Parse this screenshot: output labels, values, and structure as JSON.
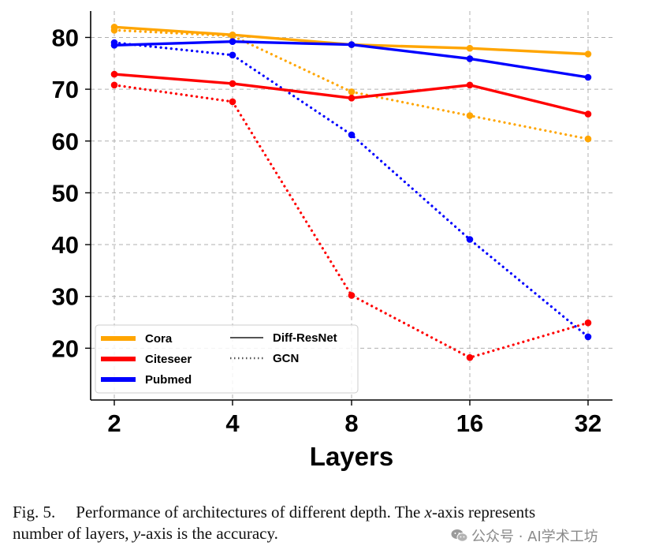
{
  "chart_data": {
    "type": "line",
    "categories": [
      "2",
      "4",
      "8",
      "16",
      "32"
    ],
    "xlabel": "Layers",
    "ylabel": "",
    "ylim": [
      10,
      85
    ],
    "yticks": [
      20,
      30,
      40,
      50,
      60,
      70,
      80
    ],
    "grid": true,
    "legend_position": "bottom-left",
    "legend": {
      "datasets": [
        {
          "name": "Cora",
          "color": "#ffa500"
        },
        {
          "name": "Citeseer",
          "color": "#ff0000"
        },
        {
          "name": "Pubmed",
          "color": "#0000ff"
        }
      ],
      "models": [
        {
          "name": "Diff-ResNet",
          "style": "solid"
        },
        {
          "name": "GCN",
          "style": "dotted"
        }
      ]
    },
    "series": [
      {
        "dataset": "Cora",
        "model": "Diff-ResNet",
        "color": "#ffa500",
        "style": "solid",
        "values": [
          82.0,
          80.5,
          78.6,
          77.9,
          76.8
        ]
      },
      {
        "dataset": "Citeseer",
        "model": "Diff-ResNet",
        "color": "#ff0000",
        "style": "solid",
        "values": [
          72.9,
          71.1,
          68.3,
          70.8,
          65.2
        ]
      },
      {
        "dataset": "Pubmed",
        "model": "Diff-ResNet",
        "color": "#0000ff",
        "style": "solid",
        "values": [
          78.5,
          79.2,
          78.6,
          75.9,
          72.3
        ]
      },
      {
        "dataset": "Cora",
        "model": "GCN",
        "color": "#ffa500",
        "style": "dotted",
        "values": [
          81.4,
          80.3,
          69.5,
          64.9,
          60.4
        ]
      },
      {
        "dataset": "Citeseer",
        "model": "GCN",
        "color": "#ff0000",
        "style": "dotted",
        "values": [
          70.8,
          67.6,
          30.2,
          18.2,
          24.9
        ]
      },
      {
        "dataset": "Pubmed",
        "model": "GCN",
        "color": "#0000ff",
        "style": "dotted",
        "values": [
          79.0,
          76.6,
          61.2,
          41.0,
          22.2
        ]
      }
    ]
  },
  "caption": {
    "label": "Fig. 5.",
    "text_1": "Performance of architectures of different depth. The ",
    "var_x": "x",
    "text_2": "-axis represents",
    "text_3": "number of layers, ",
    "var_y": "y",
    "text_4": "-axis is the accuracy."
  },
  "watermark": {
    "text": "公众号 · AI学术工坊",
    "icon": "wechat-icon"
  }
}
